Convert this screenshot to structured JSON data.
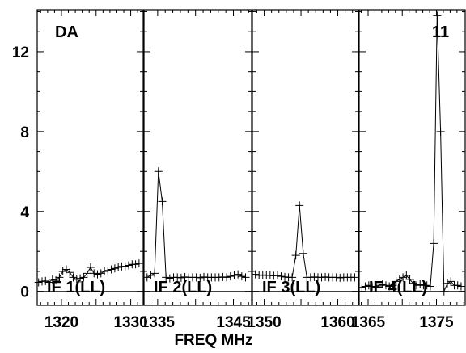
{
  "chart_data": {
    "type": "line",
    "top_left_label": "DA",
    "top_right_label": "11",
    "xlabel": "FREQ MHz",
    "ylim": [
      -0.7,
      14.1
    ],
    "yticks": [
      0,
      4,
      8,
      12
    ],
    "panels": [
      {
        "name": "IF 1(LL)",
        "xlim": [
          1316.5,
          1331.8
        ],
        "xticks": [
          1320,
          1330
        ],
        "x": [
          1316.7,
          1317.2,
          1317.7,
          1318.2,
          1318.7,
          1319.2,
          1319.7,
          1320.2,
          1320.7,
          1321.2,
          1321.7,
          1322.2,
          1322.7,
          1323.2,
          1323.7,
          1324.2,
          1324.7,
          1325.2,
          1325.7,
          1326.2,
          1326.7,
          1327.2,
          1327.7,
          1328.2,
          1328.7,
          1329.2,
          1329.7,
          1330.2,
          1330.7,
          1331.2
        ],
        "y": [
          0.45,
          0.5,
          0.52,
          0.45,
          0.6,
          0.55,
          0.7,
          1.0,
          1.1,
          0.95,
          0.7,
          0.6,
          0.65,
          0.7,
          0.9,
          1.2,
          0.9,
          0.85,
          0.9,
          1.0,
          1.05,
          1.1,
          1.15,
          1.2,
          1.25,
          1.25,
          1.3,
          1.35,
          1.35,
          1.4
        ]
      },
      {
        "name": "IF 2(LL)",
        "xlim": [
          1333.2,
          1347.4
        ],
        "xticks": [
          1335,
          1345
        ],
        "x": [
          1333.6,
          1334.1,
          1334.6,
          1335.1,
          1335.6,
          1336.1,
          1336.6,
          1337.1,
          1337.6,
          1338.1,
          1338.6,
          1339.1,
          1339.6,
          1340.1,
          1340.6,
          1341.1,
          1341.6,
          1342.1,
          1342.6,
          1343.1,
          1343.6,
          1344.1,
          1344.6,
          1345.1,
          1345.6,
          1346.1,
          1346.6
        ],
        "y": [
          0.7,
          0.8,
          0.9,
          6.0,
          4.5,
          0.7,
          0.65,
          0.7,
          0.7,
          0.68,
          0.72,
          0.7,
          0.7,
          0.7,
          0.68,
          0.72,
          0.7,
          0.7,
          0.7,
          0.7,
          0.72,
          0.7,
          0.75,
          0.8,
          0.85,
          0.75,
          0.7
        ]
      },
      {
        "name": "IF 3(LL)",
        "xlim": [
          1348.4,
          1362.8
        ],
        "xticks": [
          1350,
          1360
        ],
        "x": [
          1348.8,
          1349.3,
          1349.8,
          1350.3,
          1350.8,
          1351.3,
          1351.8,
          1352.3,
          1352.8,
          1353.3,
          1353.8,
          1354.3,
          1354.8,
          1355.3,
          1355.8,
          1356.3,
          1356.8,
          1357.3,
          1357.8,
          1358.3,
          1358.8,
          1359.3,
          1359.8,
          1360.3,
          1360.8,
          1361.3,
          1361.8,
          1362.3
        ],
        "y": [
          0.85,
          0.8,
          0.82,
          0.8,
          0.8,
          0.78,
          0.8,
          0.75,
          0.72,
          0.7,
          0.7,
          1.8,
          4.3,
          1.9,
          0.7,
          0.7,
          0.72,
          0.7,
          0.7,
          0.72,
          0.7,
          0.7,
          0.7,
          0.68,
          0.7,
          0.7,
          0.7,
          0.7
        ]
      },
      {
        "name": "IF 4(LL)",
        "xlim": [
          1363.7,
          1379.2
        ],
        "xticks": [
          1365,
          1375
        ],
        "x": [
          1364.1,
          1364.6,
          1365.1,
          1365.6,
          1366.1,
          1366.6,
          1367.1,
          1367.6,
          1368.1,
          1368.6,
          1369.1,
          1369.6,
          1370.1,
          1370.6,
          1371.1,
          1371.6,
          1372.1,
          1372.6,
          1373.1,
          1373.6,
          1374.1,
          1374.6,
          1375.1,
          1375.6,
          1376.1,
          1376.6,
          1377.1,
          1377.6,
          1378.1,
          1378.6
        ],
        "y": [
          0.2,
          0.25,
          0.3,
          0.25,
          0.2,
          0.3,
          0.35,
          0.3,
          0.25,
          0.3,
          0.5,
          0.6,
          0.7,
          0.8,
          0.6,
          0.4,
          0.3,
          0.35,
          0.3,
          0.3,
          0.25,
          2.4,
          13.8,
          8.0,
          0.0,
          0.4,
          0.5,
          0.3,
          0.3,
          0.25
        ]
      }
    ]
  }
}
